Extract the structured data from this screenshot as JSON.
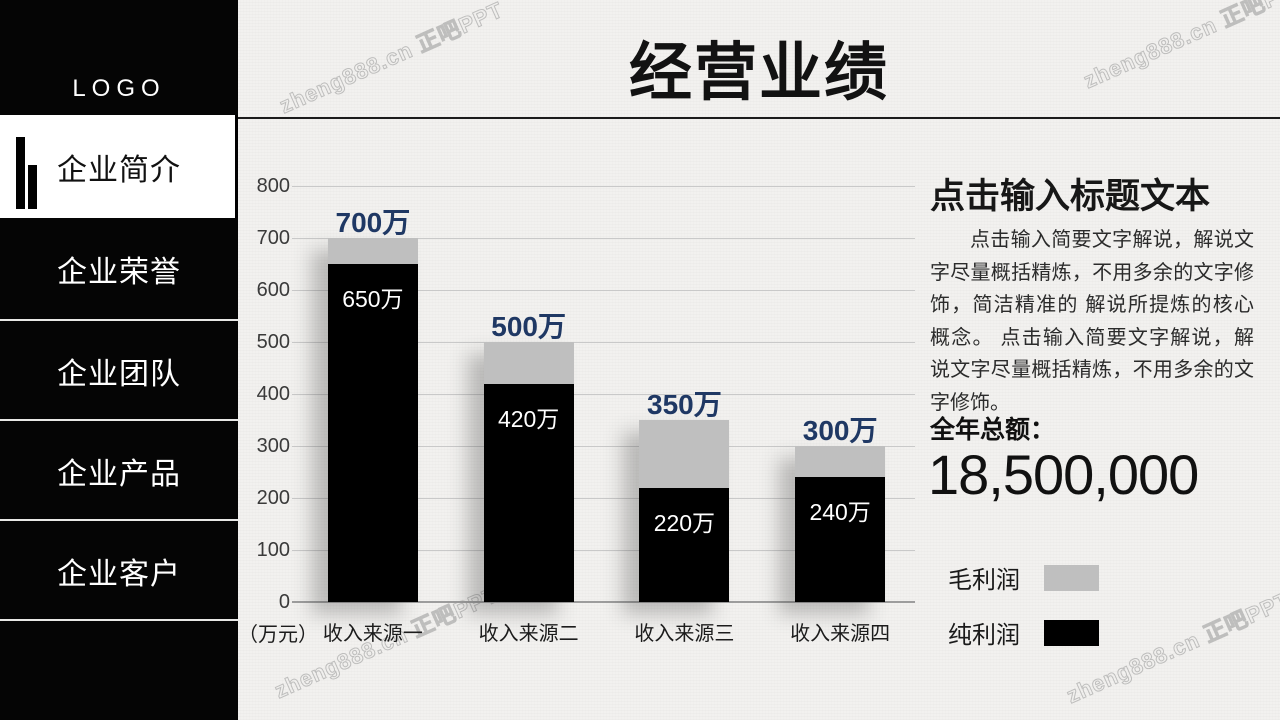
{
  "watermark": {
    "text": "zheng888.cn 正吧PPT"
  },
  "sidebar": {
    "logo": "LOGO",
    "items": [
      {
        "label": "企业简介",
        "active": true
      },
      {
        "label": "企业荣誉",
        "active": false
      },
      {
        "label": "企业团队",
        "active": false
      },
      {
        "label": "企业产品",
        "active": false
      },
      {
        "label": "企业客户",
        "active": false
      }
    ]
  },
  "header": {
    "title": "经营业绩"
  },
  "chart_data": {
    "type": "bar",
    "stacked": true,
    "unit_label": "（万元）",
    "categories": [
      "收入来源一",
      "收入来源二",
      "收入来源三",
      "收入来源四"
    ],
    "series": [
      {
        "name": "纯利润",
        "color": "#000000",
        "values": [
          650,
          420,
          220,
          240
        ],
        "value_labels": [
          "650万",
          "420万",
          "220万",
          "240万"
        ]
      },
      {
        "name": "毛利润",
        "color": "#bfbfbf",
        "values": [
          50,
          80,
          130,
          60
        ]
      }
    ],
    "totals": [
      700,
      500,
      350,
      300
    ],
    "total_labels": [
      "700万",
      "500万",
      "350万",
      "300万"
    ],
    "total_label_color": "#1f3864",
    "y_ticks": [
      0,
      100,
      200,
      300,
      400,
      500,
      600,
      700,
      800
    ],
    "ylim": [
      0,
      800
    ],
    "grid": true,
    "legend_position": "right-bottom",
    "legend": [
      {
        "label": "毛利润",
        "color": "#bfbfbf"
      },
      {
        "label": "纯利润",
        "color": "#000000"
      }
    ]
  },
  "panel": {
    "title": "点击输入标题文本",
    "body": "点击输入简要文字解说，解说文字尽量概括精炼，不用多余的文字修饰，简洁精准的 解说所提炼的核心概念。 点击输入简要文字解说，解说文字尽量概括精炼，不用多余的文字修饰。",
    "total_caption": "全年总额：",
    "total_value": "18,500,000"
  }
}
